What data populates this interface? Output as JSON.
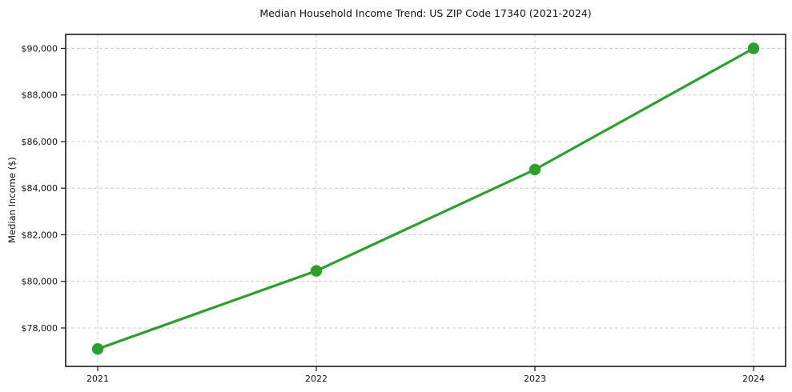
{
  "chart_data": {
    "type": "line",
    "title": "Median Household Income Trend: US ZIP Code 17340 (2021-2024)",
    "xlabel": "",
    "ylabel": "Median Income ($)",
    "categories": [
      "2021",
      "2022",
      "2023",
      "2024"
    ],
    "values": [
      77100,
      80450,
      84800,
      90000
    ],
    "series_name": "Median Household Income",
    "ylim": [
      76350,
      90600
    ],
    "yticks": [
      78000,
      80000,
      82000,
      84000,
      86000,
      88000,
      90000
    ],
    "ytick_labels": [
      "$78,000",
      "$80,000",
      "$82,000",
      "$84,000",
      "$86,000",
      "$88,000",
      "$90,000"
    ],
    "grid": true,
    "grid_style": "dashed",
    "legend_position": "none",
    "colors": {
      "line": "#2ca02c",
      "marker": "#2ca02c",
      "grid": "#cccccc",
      "spine": "#1a1a1a",
      "text": "#111111",
      "background": "#ffffff"
    }
  }
}
